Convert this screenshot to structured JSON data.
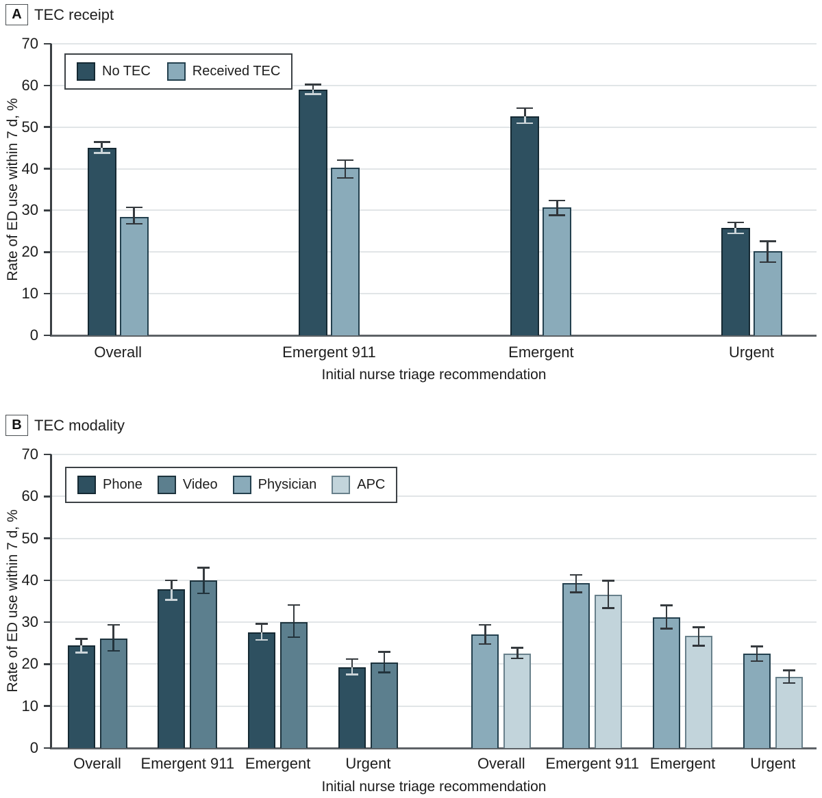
{
  "chart_data": [
    {
      "id": "A",
      "type": "bar",
      "badge": "A",
      "title": "TEC receipt",
      "ylabel": "Rate of ED use within 7 d, %",
      "xlabel": "Initial nurse triage recommendation",
      "ylim": [
        0,
        70
      ],
      "yticks": [
        0,
        10,
        20,
        30,
        40,
        50,
        60,
        70
      ],
      "grid": true,
      "legend_position": "top-left",
      "series": [
        {
          "name": "No TEC",
          "fill": "#2e5060",
          "border": "#152933",
          "whisker_inner": "#ccd5d9"
        },
        {
          "name": "Received TEC",
          "fill": "#8aabba",
          "border": "#23404e",
          "whisker_inner": "#30353a"
        }
      ],
      "groups": [
        {
          "category": "Overall",
          "center_pct": 8.7,
          "bars": [
            {
              "series": "No TEC",
              "value": 45.0,
              "ci": [
                43.6,
                46.6
              ]
            },
            {
              "series": "Received TEC",
              "value": 28.5,
              "ci": [
                26.6,
                30.9
              ]
            }
          ]
        },
        {
          "category": "Emergent 911",
          "center_pct": 36.3,
          "bars": [
            {
              "series": "No TEC",
              "value": 59.0,
              "ci": [
                57.7,
                60.4
              ]
            },
            {
              "series": "Received TEC",
              "value": 40.2,
              "ci": [
                37.6,
                42.3
              ]
            }
          ]
        },
        {
          "category": "Emergent",
          "center_pct": 64.0,
          "bars": [
            {
              "series": "No TEC",
              "value": 52.6,
              "ci": [
                50.7,
                54.8
              ]
            },
            {
              "series": "Received TEC",
              "value": 30.7,
              "ci": [
                28.6,
                32.6
              ]
            }
          ]
        },
        {
          "category": "Urgent",
          "center_pct": 91.5,
          "bars": [
            {
              "series": "No TEC",
              "value": 25.8,
              "ci": [
                24.3,
                27.3
              ]
            },
            {
              "series": "Received TEC",
              "value": 20.2,
              "ci": [
                17.4,
                22.8
              ]
            }
          ]
        }
      ]
    },
    {
      "id": "B",
      "type": "bar",
      "badge": "B",
      "title": "TEC modality",
      "ylabel": "Rate of ED use within 7 d, %",
      "xlabel": "Initial nurse triage recommendation",
      "ylim": [
        0,
        70
      ],
      "yticks": [
        0,
        10,
        20,
        30,
        40,
        50,
        60,
        70
      ],
      "grid": true,
      "legend_position": "top-left",
      "series": [
        {
          "name": "Phone",
          "fill": "#2e5060",
          "border": "#152933",
          "whisker_inner": "#ccd5d9"
        },
        {
          "name": "Video",
          "fill": "#5c7f8e",
          "border": "#1d333d",
          "whisker_inner": "#22333c"
        },
        {
          "name": "Physician",
          "fill": "#8aabba",
          "border": "#23404e",
          "whisker_inner": "#30353a"
        },
        {
          "name": "APC",
          "fill": "#c2d4db",
          "border": "#68808b",
          "whisker_inner": "#30353a"
        }
      ],
      "groups": [
        {
          "category": "Overall",
          "center_pct": 6.0,
          "bars": [
            {
              "series": "Phone",
              "value": 24.4,
              "ci": [
                22.6,
                26.2
              ]
            },
            {
              "series": "Video",
              "value": 26.1,
              "ci": [
                23.0,
                29.6
              ]
            }
          ]
        },
        {
          "category": "Emergent 911",
          "center_pct": 17.8,
          "bars": [
            {
              "series": "Phone",
              "value": 37.8,
              "ci": [
                35.1,
                40.2
              ]
            },
            {
              "series": "Video",
              "value": 40.0,
              "ci": [
                36.7,
                43.2
              ]
            }
          ]
        },
        {
          "category": "Emergent",
          "center_pct": 29.6,
          "bars": [
            {
              "series": "Phone",
              "value": 27.6,
              "ci": [
                25.6,
                29.8
              ]
            },
            {
              "series": "Video",
              "value": 30.1,
              "ci": [
                26.2,
                34.3
              ]
            }
          ]
        },
        {
          "category": "Urgent",
          "center_pct": 41.4,
          "bars": [
            {
              "series": "Phone",
              "value": 19.3,
              "ci": [
                17.3,
                21.4
              ]
            },
            {
              "series": "Video",
              "value": 20.4,
              "ci": [
                17.8,
                23.1
              ]
            }
          ]
        },
        {
          "category": "Overall",
          "center_pct": 58.8,
          "bars": [
            {
              "series": "Physician",
              "value": 27.1,
              "ci": [
                24.6,
                29.6
              ]
            },
            {
              "series": "APC",
              "value": 22.6,
              "ci": [
                21.2,
                24.1
              ]
            }
          ]
        },
        {
          "category": "Emergent 911",
          "center_pct": 70.7,
          "bars": [
            {
              "series": "Physician",
              "value": 39.4,
              "ci": [
                36.9,
                41.5
              ]
            },
            {
              "series": "APC",
              "value": 36.6,
              "ci": [
                33.2,
                40.1
              ]
            }
          ]
        },
        {
          "category": "Emergent",
          "center_pct": 82.5,
          "bars": [
            {
              "series": "Physician",
              "value": 31.2,
              "ci": [
                28.3,
                34.2
              ]
            },
            {
              "series": "APC",
              "value": 26.7,
              "ci": [
                24.2,
                29.0
              ]
            }
          ]
        },
        {
          "category": "Urgent",
          "center_pct": 94.3,
          "bars": [
            {
              "series": "Physician",
              "value": 22.5,
              "ci": [
                20.5,
                24.4
              ]
            },
            {
              "series": "APC",
              "value": 17.0,
              "ci": [
                15.3,
                18.7
              ]
            }
          ]
        }
      ]
    }
  ],
  "style_colors": {
    "gridline": "#e1e5e7",
    "y_axis": "#3a3f43",
    "x_axis": "#5d6266",
    "whisker": "#363b3f",
    "text": "#1d1d1d"
  }
}
